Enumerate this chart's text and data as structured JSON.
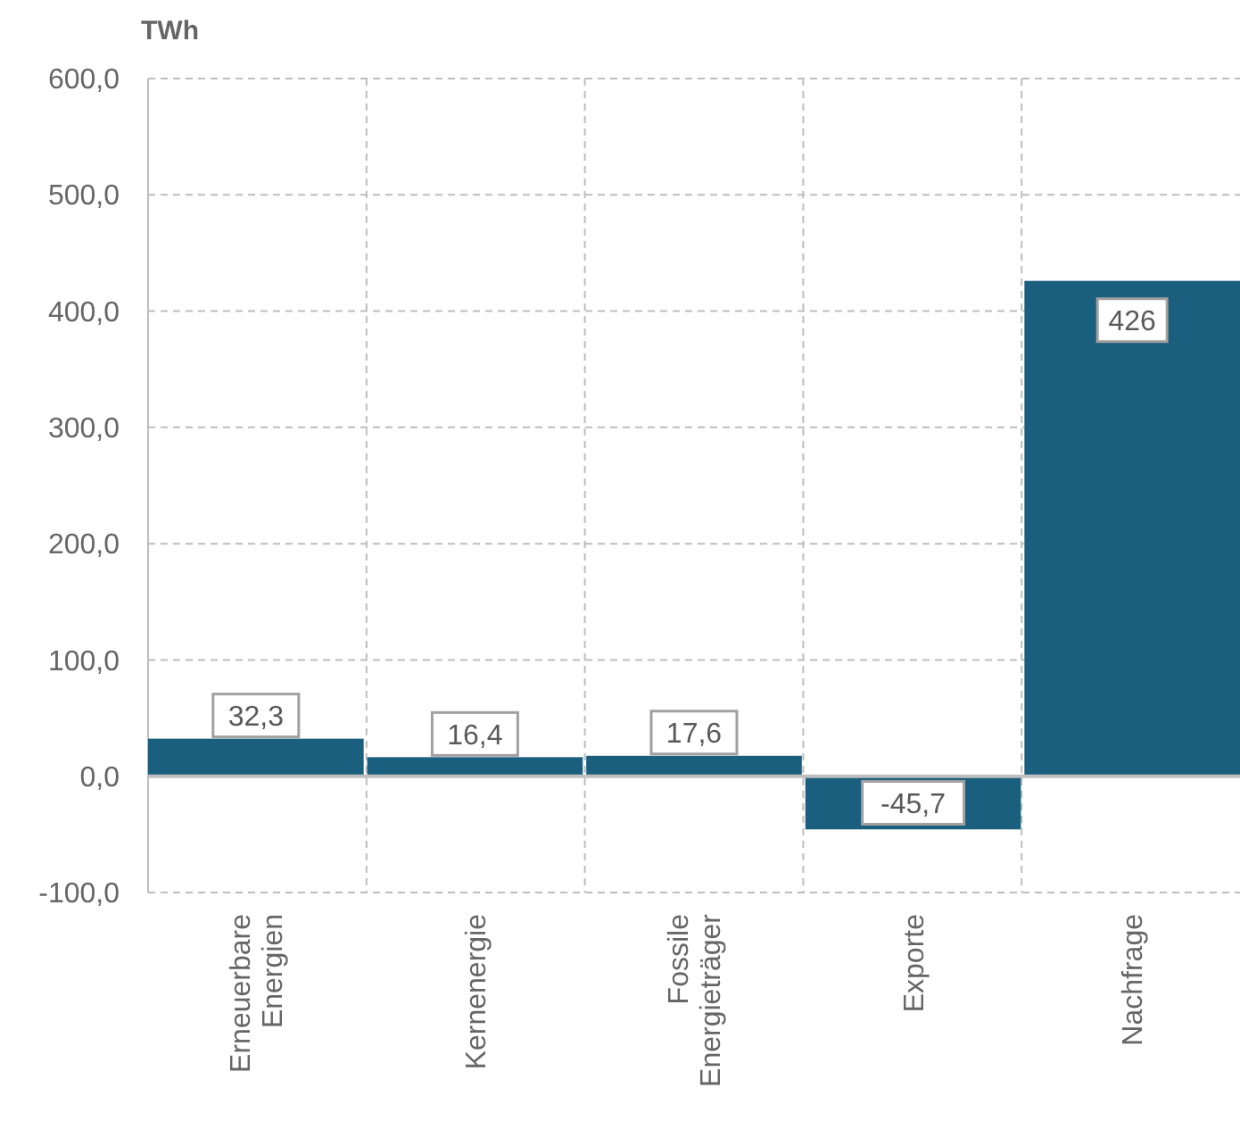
{
  "chart_data": {
    "type": "bar",
    "ylabel": "TWh",
    "categories": [
      "Erneuerbare Energien",
      "Kernenergie",
      "Fossile Energieträger",
      "Exporte",
      "Nachfrage"
    ],
    "values": [
      32.3,
      16.4,
      17.6,
      -45.7,
      426
    ],
    "value_labels": [
      "32,3",
      "16,4",
      "17,6",
      "-45,7",
      "426"
    ],
    "color": "#1b5f7e",
    "ylim": [
      -100,
      600
    ],
    "yticks": [
      {
        "value": -100,
        "label": "-100,0"
      },
      {
        "value": 0,
        "label": "0,0"
      },
      {
        "value": 100,
        "label": "100,0"
      },
      {
        "value": 200,
        "label": "200,0"
      },
      {
        "value": 300,
        "label": "300,0"
      },
      {
        "value": 400,
        "label": "400,0"
      },
      {
        "value": 500,
        "label": "500,0"
      },
      {
        "value": 600,
        "label": "600,0"
      }
    ],
    "grid": true
  }
}
